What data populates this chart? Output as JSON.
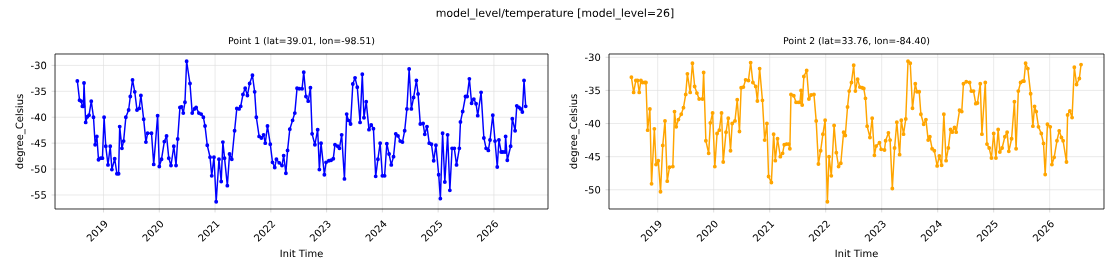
{
  "chart_data": [
    {
      "type": "line",
      "title": "Point 1 (lat=39.01, lon=-98.51)",
      "annotations": [
        "model_level/temperature [model_level=26]"
      ],
      "xlabel": "Init Time",
      "ylabel": "degree_Celsius",
      "color": "#0000ff",
      "marker": "circle",
      "line_style": "solid",
      "grid": true,
      "xlim": [
        2018.13,
        2026.97
      ],
      "ylim": [
        -57.7,
        -27.8
      ],
      "xticks": [
        2019,
        2020,
        2021,
        2022,
        2023,
        2024,
        2025,
        2026
      ],
      "yticks": [
        -55,
        -50,
        -45,
        -40,
        -35,
        -30
      ],
      "x": [
        2018.53,
        2018.57,
        2018.6,
        2018.62,
        2018.64,
        2018.65,
        2018.68,
        2018.71,
        2018.74,
        2018.78,
        2018.82,
        2018.85,
        2018.88,
        2018.91,
        2018.95,
        2018.98,
        2019.01,
        2019.04,
        2019.08,
        2019.12,
        2019.15,
        2019.2,
        2019.24,
        2019.27,
        2019.29,
        2019.33,
        2019.36,
        2019.4,
        2019.45,
        2019.48,
        2019.52,
        2019.56,
        2019.6,
        2019.64,
        2019.67,
        2019.72,
        2019.76,
        2019.79,
        2019.86,
        2019.9,
        2019.97,
        2020.0,
        2020.04,
        2020.09,
        2020.13,
        2020.17,
        2020.21,
        2020.26,
        2020.3,
        2020.33,
        2020.37,
        2020.4,
        2020.43,
        2020.46,
        2020.49,
        2020.55,
        2020.59,
        2020.63,
        2020.66,
        2020.71,
        2020.75,
        2020.79,
        2020.82,
        2020.86,
        2020.91,
        2020.94,
        2020.98,
        2021.02,
        2021.07,
        2021.11,
        2021.14,
        2021.17,
        2021.22,
        2021.26,
        2021.3,
        2021.35,
        2021.39,
        2021.43,
        2021.46,
        2021.5,
        2021.54,
        2021.58,
        2021.62,
        2021.67,
        2021.71,
        2021.74,
        2021.79,
        2021.83,
        2021.87,
        2021.9,
        2021.94,
        2021.99,
        2022.03,
        2022.07,
        2022.1,
        2022.15,
        2022.2,
        2022.23,
        2022.27,
        2022.3,
        2022.34,
        2022.39,
        2022.43,
        2022.47,
        2022.51,
        2022.56,
        2022.59,
        2022.63,
        2022.67,
        2022.71,
        2022.74,
        2022.79,
        2022.84,
        2022.87,
        2022.9,
        2022.96,
        2022.99,
        2023.04,
        2023.08,
        2023.12,
        2023.15,
        2023.2,
        2023.23,
        2023.27,
        2023.32,
        2023.36,
        2023.39,
        2023.43,
        2023.47,
        2023.51,
        2023.55,
        2023.6,
        2023.64,
        2023.67,
        2023.71,
        2023.76,
        2023.8,
        2023.84,
        2023.88,
        2023.92,
        2023.96,
        2024.0,
        2024.04,
        2024.08,
        2024.12,
        2024.16,
        2024.2,
        2024.24,
        2024.28,
        2024.32,
        2024.36,
        2024.4,
        2024.44,
        2024.48,
        2024.52,
        2024.56,
        2024.61,
        2024.64,
        2024.68,
        2024.73,
        2024.76,
        2024.8,
        2024.84,
        2024.88,
        2024.92,
        2024.96,
        2025.01,
        2025.04,
        2025.08,
        2025.12,
        2025.17,
        2025.21,
        2025.25,
        2025.29,
        2025.33,
        2025.38,
        2025.4,
        2025.44,
        2025.49,
        2025.52,
        2025.56,
        2025.6,
        2025.64,
        2025.68,
        2025.71,
        2025.77,
        2025.82,
        2025.86,
        2025.9,
        2025.93,
        2025.98,
        2026.02,
        2026.06,
        2026.09,
        2026.13,
        2026.16,
        2026.2,
        2026.21,
        2026.24,
        2026.3,
        2026.33,
        2026.38,
        2026.41,
        2026.45,
        2026.48,
        2026.51,
        2026.54,
        2026.57
      ],
      "values": [
        -33.0,
        -36.7,
        -36.9,
        -37.9,
        -37.9,
        -33.4,
        -41.0,
        -39.9,
        -39.6,
        -36.9,
        -40.0,
        -45.3,
        -43.7,
        -48.2,
        -47.9,
        -47.9,
        -40.0,
        -45.6,
        -49.2,
        -45.6,
        -50.1,
        -48.0,
        -50.9,
        -50.9,
        -41.8,
        -46.0,
        -44.6,
        -40.0,
        -38.6,
        -36.0,
        -32.8,
        -35.1,
        -38.6,
        -38.3,
        -35.8,
        -40.4,
        -44.8,
        -43.1,
        -43.1,
        -49.1,
        -39.7,
        -49.5,
        -48.1,
        -44.7,
        -43.6,
        -47.9,
        -49.3,
        -45.6,
        -49.3,
        -44.2,
        -38.1,
        -38.0,
        -39.2,
        -37.1,
        -29.2,
        -33.5,
        -39.2,
        -38.4,
        -38.1,
        -39.2,
        -39.4,
        -40.0,
        -41.7,
        -45.4,
        -47.7,
        -51.3,
        -47.7,
        -56.3,
        -48.1,
        -52.4,
        -44.8,
        -47.9,
        -53.2,
        -47.1,
        -48.1,
        -42.6,
        -38.3,
        -38.4,
        -37.9,
        -35.6,
        -34.4,
        -35.8,
        -33.5,
        -31.9,
        -35.1,
        -40.0,
        -43.7,
        -44.0,
        -43.4,
        -45.0,
        -41.7,
        -45.2,
        -48.7,
        -49.7,
        -48.1,
        -48.8,
        -49.3,
        -47.4,
        -50.8,
        -46.4,
        -42.3,
        -40.6,
        -39.2,
        -34.4,
        -34.5,
        -34.5,
        -31.3,
        -36.0,
        -36.9,
        -34.3,
        -43.2,
        -45.3,
        -42.4,
        -50.1,
        -45.0,
        -51.1,
        -48.7,
        -48.4,
        -48.3,
        -48.0,
        -45.3,
        -45.6,
        -46.0,
        -43.4,
        -51.9,
        -39.4,
        -40.6,
        -41.3,
        -33.6,
        -32.4,
        -34.2,
        -41.0,
        -31.7,
        -40.1,
        -37.0,
        -42.4,
        -41.5,
        -42.2,
        -51.4,
        -48.1,
        -45.0,
        -51.3,
        -51.3,
        -45.1,
        -47.1,
        -49.2,
        -47.6,
        -43.2,
        -43.6,
        -44.6,
        -44.8,
        -42.6,
        -38.4,
        -30.7,
        -38.4,
        -36.2,
        -32.9,
        -35.5,
        -41.3,
        -41.2,
        -43.3,
        -41.8,
        -45.0,
        -45.2,
        -48.4,
        -45.4,
        -51.1,
        -55.7,
        -43.1,
        -52.5,
        -43.4,
        -54.1,
        -46.0,
        -46.0,
        -49.2,
        -46.0,
        -40.9,
        -38.9,
        -36.0,
        -36.0,
        -32.6,
        -37.3,
        -36.5,
        -37.4,
        -39.7,
        -35.2,
        -44.0,
        -46.0,
        -46.4,
        -44.4,
        -39.6,
        -44.6,
        -49.6,
        -44.4,
        -46.7,
        -46.7,
        -46.7,
        -43.7,
        -48.3,
        -45.6,
        -40.3,
        -42.6,
        -37.8,
        -38.1,
        -38.4,
        -39.0,
        -32.9,
        -37.9
      ]
    },
    {
      "type": "line",
      "title": "Point 2 (lat=33.76, lon=-84.40)",
      "xlabel": "Init Time",
      "ylabel": "degree_Celsius",
      "color": "#ffa500",
      "marker": "circle",
      "line_style": "solid",
      "grid": true,
      "xlim": [
        2018.13,
        2026.97
      ],
      "ylim": [
        -52.9,
        -29.5
      ],
      "xticks": [
        2019,
        2020,
        2021,
        2022,
        2023,
        2024,
        2025,
        2026
      ],
      "yticks": [
        -50,
        -45,
        -40,
        -35,
        -30
      ],
      "x": [
        2018.53,
        2018.57,
        2018.61,
        2018.64,
        2018.67,
        2018.7,
        2018.73,
        2018.77,
        2018.79,
        2018.82,
        2018.86,
        2018.89,
        2018.94,
        2018.97,
        2019.01,
        2019.05,
        2019.09,
        2019.13,
        2019.17,
        2019.21,
        2019.27,
        2019.3,
        2019.33,
        2019.37,
        2019.42,
        2019.46,
        2019.5,
        2019.53,
        2019.58,
        2019.62,
        2019.66,
        2019.7,
        2019.74,
        2019.8,
        2019.82,
        2019.86,
        2019.91,
        2019.94,
        2019.98,
        2020.02,
        2020.06,
        2020.1,
        2020.14,
        2020.17,
        2020.22,
        2020.26,
        2020.3,
        2020.33,
        2020.38,
        2020.42,
        2020.46,
        2020.49,
        2020.53,
        2020.57,
        2020.62,
        2020.66,
        2020.7,
        2020.75,
        2020.78,
        2020.82,
        2020.87,
        2020.91,
        2020.95,
        2020.98,
        2021.03,
        2021.07,
        2021.1,
        2021.14,
        2021.19,
        2021.23,
        2021.26,
        2021.3,
        2021.34,
        2021.36,
        2021.38,
        2021.43,
        2021.47,
        2021.51,
        2021.54,
        2021.56,
        2021.58,
        2021.61,
        2021.66,
        2021.7,
        2021.74,
        2021.79,
        2021.83,
        2021.87,
        2021.91,
        2021.95,
        2021.99,
        2022.03,
        2022.06,
        2022.1,
        2022.15,
        2022.19,
        2022.23,
        2022.27,
        2022.32,
        2022.35,
        2022.39,
        2022.42,
        2022.46,
        2022.5,
        2022.53,
        2022.57,
        2022.61,
        2022.65,
        2022.68,
        2022.71,
        2022.74,
        2022.79,
        2022.83,
        2022.87,
        2022.9,
        2022.96,
        2022.99,
        2023.05,
        2023.07,
        2023.12,
        2023.15,
        2023.19,
        2023.23,
        2023.27,
        2023.32,
        2023.35,
        2023.39,
        2023.43,
        2023.47,
        2023.51,
        2023.55,
        2023.6,
        2023.63,
        2023.67,
        2023.7,
        2023.75,
        2023.79,
        2023.83,
        2023.86,
        2023.9,
        2023.94,
        2023.99,
        2024.03,
        2024.07,
        2024.11,
        2024.15,
        2024.19,
        2024.23,
        2024.26,
        2024.3,
        2024.33,
        2024.39,
        2024.43,
        2024.46,
        2024.51,
        2024.57,
        2024.6,
        2024.64,
        2024.68,
        2024.71,
        2024.76,
        2024.79,
        2024.85,
        2024.88,
        2024.92,
        2024.96,
        2025.0,
        2025.04,
        2025.08,
        2025.11,
        2025.15,
        2025.2,
        2025.24,
        2025.27,
        2025.32,
        2025.37,
        2025.4,
        2025.44,
        2025.48,
        2025.52,
        2025.54,
        2025.57,
        2025.61,
        2025.66,
        2025.7,
        2025.73,
        2025.76,
        2025.8,
        2025.85,
        2025.89,
        2025.92,
        2025.96,
        2026.01,
        2026.04,
        2026.08,
        2026.13,
        2026.17,
        2026.21,
        2026.24,
        2026.3,
        2026.32,
        2026.36,
        2026.4,
        2026.44,
        2026.48,
        2026.53,
        2026.56
      ],
      "values": [
        -33.0,
        -35.3,
        -33.5,
        -33.5,
        -35.3,
        -33.5,
        -33.8,
        -33.8,
        -33.8,
        -41.0,
        -37.8,
        -49.1,
        -40.8,
        -46.2,
        -45.6,
        -50.3,
        -43.3,
        -39.6,
        -48.7,
        -46.6,
        -46.5,
        -38.2,
        -40.5,
        -39.4,
        -38.6,
        -37.6,
        -35.6,
        -32.5,
        -35.3,
        -30.9,
        -34.4,
        -35.4,
        -36.3,
        -36.3,
        -32.3,
        -42.6,
        -44.5,
        -39.9,
        -38.4,
        -46.5,
        -41.5,
        -41.0,
        -38.4,
        -45.8,
        -41.3,
        -39.2,
        -44.1,
        -40.0,
        -39.6,
        -36.4,
        -41.2,
        -34.6,
        -34.5,
        -33.4,
        -33.5,
        -30.8,
        -33.8,
        -34.4,
        -36.6,
        -31.7,
        -36.5,
        -42.5,
        -40.0,
        -48.0,
        -48.9,
        -41.6,
        -45.6,
        -42.3,
        -45.0,
        -44.5,
        -43.2,
        -43.1,
        -43.1,
        -43.8,
        -35.6,
        -35.8,
        -36.8,
        -36.8,
        -36.8,
        -35.0,
        -37.2,
        -32.9,
        -32.0,
        -36.3,
        -35.7,
        -35.6,
        -39.6,
        -46.1,
        -44.1,
        -41.6,
        -39.5,
        -51.8,
        -45.0,
        -47.9,
        -40.3,
        -44.4,
        -46.5,
        -46.0,
        -41.3,
        -41.8,
        -37.5,
        -35.1,
        -33.8,
        -31.2,
        -35.1,
        -33.3,
        -34.5,
        -34.6,
        -34.7,
        -36.2,
        -40.4,
        -42.1,
        -39.2,
        -44.8,
        -43.4,
        -42.9,
        -43.9,
        -44.0,
        -42.6,
        -41.4,
        -42.5,
        -49.8,
        -43.7,
        -39.8,
        -44.7,
        -39.5,
        -41.6,
        -39.3,
        -30.6,
        -30.9,
        -37.7,
        -34.0,
        -35.2,
        -35.2,
        -38.6,
        -40.1,
        -39.4,
        -42.5,
        -42.0,
        -43.8,
        -44.1,
        -46.4,
        -44.9,
        -46.3,
        -38.6,
        -45.6,
        -43.7,
        -40.9,
        -41.3,
        -40.6,
        -41.3,
        -38.0,
        -38.2,
        -34.0,
        -33.7,
        -33.8,
        -35.1,
        -35.1,
        -37.0,
        -36.9,
        -34.0,
        -41.6,
        -33.8,
        -43.1,
        -43.7,
        -45.2,
        -41.5,
        -45.2,
        -40.9,
        -44.3,
        -43.7,
        -42.0,
        -41.3,
        -44.2,
        -42.3,
        -36.7,
        -43.8,
        -35.1,
        -33.8,
        -33.6,
        -33.6,
        -30.9,
        -31.7,
        -35.5,
        -40.4,
        -37.4,
        -38.2,
        -40.5,
        -41.5,
        -43.0,
        -47.7,
        -40.1,
        -40.5,
        -46.2,
        -45.1,
        -42.6,
        -41.1,
        -42.1,
        -42.6,
        -45.8,
        -38.7,
        -38.1,
        -39.1,
        -31.5,
        -34.1,
        -33.2,
        -31.1
      ]
    }
  ]
}
